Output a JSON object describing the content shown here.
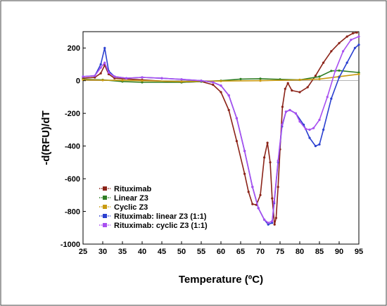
{
  "chart_data": {
    "type": "line",
    "xlabel": "Temperature (ºC)",
    "ylabel": "-d(RFU)/dT",
    "xlim": [
      25,
      95
    ],
    "ylim": [
      -1000,
      300
    ],
    "x_ticks": [
      25,
      30,
      35,
      40,
      45,
      50,
      55,
      60,
      65,
      70,
      75,
      80,
      85,
      90,
      95
    ],
    "y_ticks": [
      200,
      0,
      -200,
      -400,
      -600,
      -800,
      -1000
    ],
    "x_tick_labels": [
      "25",
      "30",
      "35",
      "40",
      "45",
      "50",
      "55",
      "60",
      "65",
      "70",
      "75",
      "80",
      "85",
      "90",
      "95"
    ],
    "y_tick_labels": [
      "200",
      "0",
      "-200",
      "-400",
      "-600",
      "-800",
      "-1000"
    ],
    "grid": false,
    "legend_position": "lower-left",
    "series": [
      {
        "name": "Rituximab",
        "color": "#8b2318",
        "x": [
          25,
          28,
          29.5,
          30.5,
          31.5,
          33,
          40,
          50,
          55,
          58,
          60,
          62,
          64,
          66,
          67,
          68,
          69,
          70,
          71,
          71.8,
          72.5,
          73,
          73.6,
          74,
          74.5,
          75,
          75.6,
          76.3,
          77,
          78,
          80,
          82,
          84,
          86,
          88,
          90,
          92,
          93.5,
          94.5
        ],
        "y": [
          15,
          20,
          45,
          95,
          40,
          15,
          5,
          -10,
          -5,
          -25,
          -70,
          -180,
          -370,
          -570,
          -680,
          -755,
          -760,
          -700,
          -470,
          -380,
          -500,
          -720,
          -880,
          -840,
          -650,
          -420,
          -160,
          -50,
          -15,
          -60,
          -70,
          -40,
          30,
          110,
          180,
          230,
          270,
          290,
          295
        ]
      },
      {
        "name": "Linear Z3",
        "color": "#2e7d23",
        "x": [
          25,
          30,
          35,
          40,
          50,
          55,
          60,
          65,
          70,
          75,
          80,
          85,
          88,
          90,
          95
        ],
        "y": [
          8,
          5,
          -5,
          -10,
          -10,
          -5,
          0,
          10,
          12,
          8,
          5,
          25,
          60,
          62,
          50
        ]
      },
      {
        "name": "Cyclic Z3",
        "color": "#c99a10",
        "x": [
          25,
          30,
          35,
          40,
          50,
          60,
          70,
          80,
          85,
          90,
          95
        ],
        "y": [
          5,
          3,
          2,
          0,
          -5,
          -2,
          0,
          5,
          10,
          25,
          40
        ]
      },
      {
        "name": "Rituximab: linear Z3 (1:1)",
        "color": "#2a3fd0",
        "x": [
          25,
          28,
          29.5,
          30.5,
          31.5,
          33,
          36,
          40,
          45,
          50,
          55,
          58,
          60,
          62,
          64,
          66,
          68,
          69.5,
          71,
          72,
          73,
          73.5,
          74.5,
          75.5,
          76.5,
          77.5,
          79,
          81,
          82.5,
          84,
          85,
          86,
          88,
          90,
          92,
          94,
          95
        ],
        "y": [
          25,
          30,
          100,
          200,
          60,
          25,
          15,
          20,
          15,
          8,
          0,
          -10,
          -30,
          -90,
          -230,
          -430,
          -650,
          -780,
          -850,
          -880,
          -870,
          -750,
          -500,
          -280,
          -190,
          -180,
          -200,
          -270,
          -350,
          -400,
          -390,
          -300,
          -110,
          20,
          110,
          200,
          220
        ]
      },
      {
        "name": "Rituximab: cyclic Z3 (1:1)",
        "color": "#a84ff0",
        "x": [
          25,
          28,
          29.5,
          30.5,
          31.5,
          33,
          36,
          40,
          45,
          50,
          55,
          58,
          60,
          62,
          64,
          66,
          68,
          69.5,
          71,
          72,
          73,
          73.5,
          74.5,
          75.5,
          76.5,
          77.5,
          79,
          80,
          81.5,
          82.5,
          83.5,
          85,
          87,
          89,
          91,
          93,
          95
        ],
        "y": [
          25,
          30,
          80,
          110,
          50,
          25,
          15,
          20,
          15,
          8,
          0,
          -10,
          -30,
          -90,
          -230,
          -430,
          -650,
          -780,
          -850,
          -870,
          -860,
          -740,
          -490,
          -270,
          -190,
          -180,
          -200,
          -250,
          -295,
          -300,
          -290,
          -240,
          -100,
          60,
          180,
          250,
          270
        ]
      }
    ]
  }
}
